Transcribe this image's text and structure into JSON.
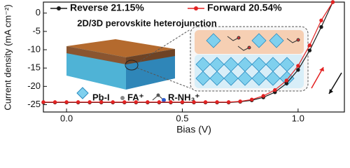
{
  "chart_data": {
    "type": "line",
    "annotation": "2D/3D perovskite heterojunction",
    "inset_legend": [
      "Pb-I",
      "FA⁺",
      "R-NH₃⁺"
    ],
    "xlabel": "Bias (V)",
    "ylabel": "Current density (mA cm⁻²)",
    "x": [
      -0.1,
      -0.05,
      0,
      0.05,
      0.1,
      0.15,
      0.2,
      0.25,
      0.3,
      0.35,
      0.4,
      0.45,
      0.5,
      0.55,
      0.6,
      0.65,
      0.7,
      0.75,
      0.8,
      0.85,
      0.9,
      0.95,
      1.0,
      1.05,
      1.1,
      1.15
    ],
    "series": [
      {
        "name": "Reverse 21.15%",
        "color": "#1a1a1a",
        "values": [
          -24.4,
          -24.4,
          -24.4,
          -24.4,
          -24.4,
          -24.4,
          -24.4,
          -24.4,
          -24.4,
          -24.4,
          -24.4,
          -24.4,
          -24.4,
          -24.4,
          -24.4,
          -24.4,
          -24.4,
          -24.2,
          -23.8,
          -23.0,
          -21.6,
          -19.2,
          -15.5,
          -10.2,
          -3.8,
          3.0
        ]
      },
      {
        "name": "Forward 20.54%",
        "color": "#e32222",
        "values": [
          -24.3,
          -24.3,
          -24.3,
          -24.3,
          -24.3,
          -24.3,
          -24.3,
          -24.3,
          -24.3,
          -24.3,
          -24.3,
          -24.3,
          -24.3,
          -24.3,
          -24.3,
          -24.3,
          -24.3,
          -24.1,
          -23.6,
          -22.6,
          -21.0,
          -18.4,
          -14.4,
          -8.8,
          -2.0,
          3.0
        ]
      }
    ],
    "xlim": [
      -0.1,
      1.2
    ],
    "ylim": [
      -27,
      3
    ],
    "xticks": [
      {
        "value": 0,
        "label": "0.0"
      },
      0.5,
      {
        "value": 1,
        "label": "1.0"
      }
    ],
    "yticks": [
      -25,
      -20,
      -15,
      -10,
      -5,
      0
    ]
  }
}
